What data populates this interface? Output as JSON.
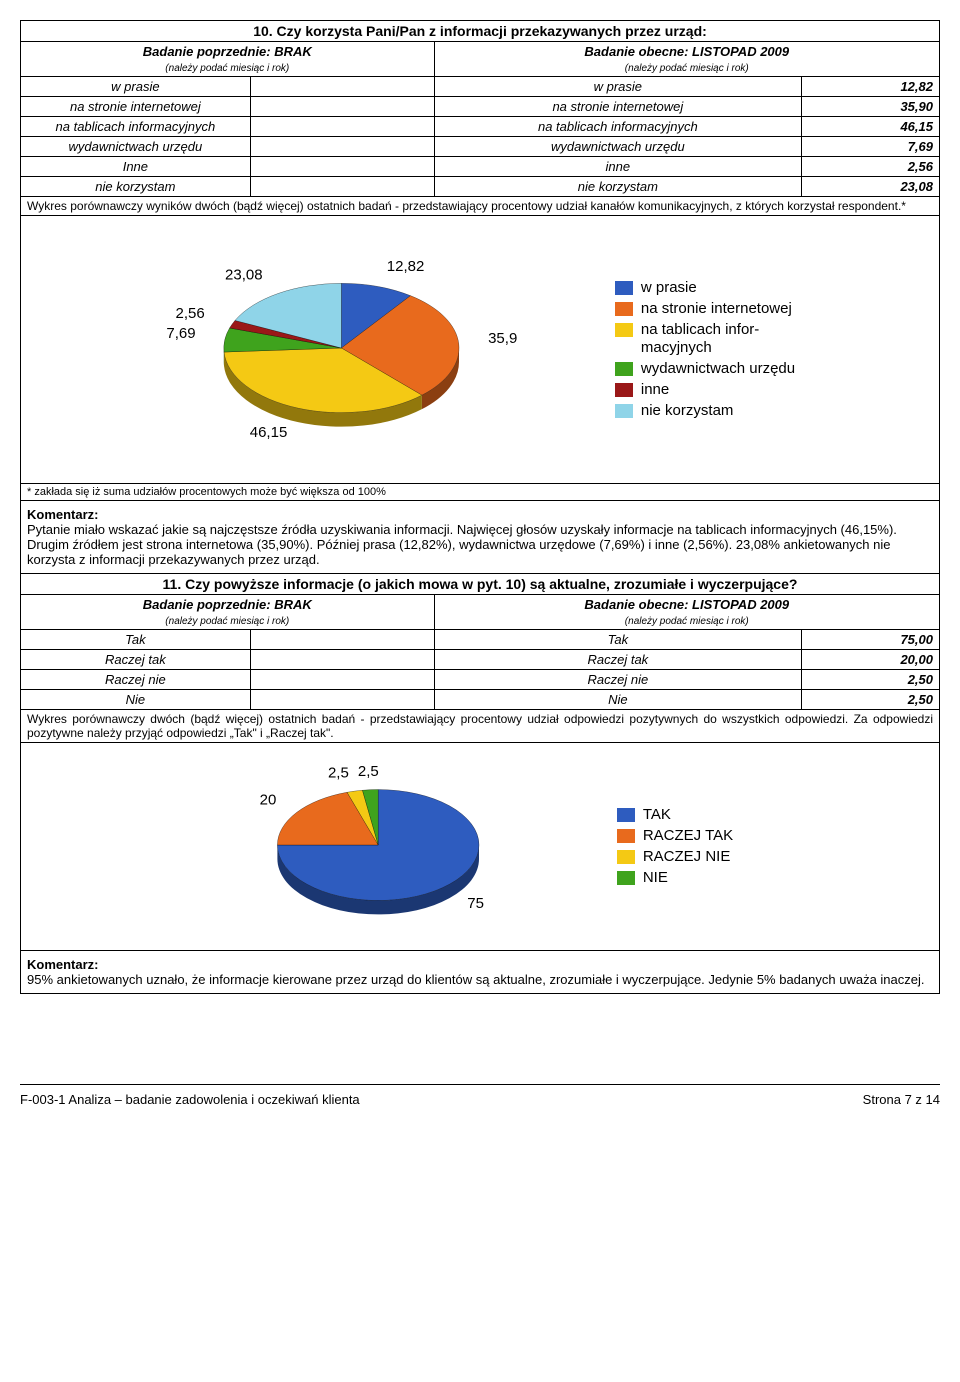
{
  "q10": {
    "title": "10. Czy korzysta Pani/Pan z informacji przekazywanych przez urząd:",
    "prev_label": "Badanie poprzednie: BRAK",
    "curr_label": "Badanie obecne: LISTOPAD 2009",
    "sub_note": "(należy podać miesiąc i rok)",
    "rows": [
      {
        "left": "w prasie",
        "right": "w prasie",
        "value": "12,82"
      },
      {
        "left": "na stronie internetowej",
        "right": "na stronie internetowej",
        "value": "35,90"
      },
      {
        "left": "na tablicach informacyjnych",
        "right": "na tablicach informacyjnych",
        "value": "46,15"
      },
      {
        "left": "wydawnictwach urzędu",
        "right": "wydawnictwach urzędu",
        "value": "7,69"
      },
      {
        "left": "Inne",
        "right": "inne",
        "value": "2,56"
      },
      {
        "left": "nie korzystam",
        "right": "nie korzystam",
        "value": "23,08"
      }
    ],
    "desc": "Wykres porównawczy wyników dwóch (bądź więcej) ostatnich badań - przedstawiający procentowy udział kanałów komunikacyjnych, z których korzystał respondent.*",
    "chart": {
      "type": "pie",
      "background": "#ffffff",
      "slices": [
        {
          "label": "w prasie",
          "value": 12.82,
          "display": "12,82",
          "color": "#2e5cbf"
        },
        {
          "label": "na stronie internetowej",
          "value": 35.9,
          "display": "35,9",
          "color": "#e86a1d"
        },
        {
          "label": "na tablicach infor-\nmacyjnych",
          "value": 46.15,
          "display": "46,15",
          "color": "#f4c914"
        },
        {
          "label": "wydawnictwach urzędu",
          "value": 7.69,
          "display": "7,69",
          "color": "#3fa31d"
        },
        {
          "label": "inne",
          "value": 2.56,
          "display": "2,56",
          "color": "#9a1818"
        },
        {
          "label": "nie korzystam",
          "value": 23.08,
          "display": "23,08",
          "color": "#8fd4e8"
        }
      ],
      "label_fontsize": 15,
      "legend_fontsize": 15
    },
    "footnote": "* zakłada się iż suma udziałów procentowych może być większa od 100%",
    "comment_label": "Komentarz:",
    "comment": "Pytanie miało wskazać jakie są najczęstsze   źródła uzyskiwania informacji. Najwięcej głosów uzyskały informacje na tablicach informacyjnych (46,15%). Drugim źródłem jest strona internetowa (35,90%). Później prasa (12,82%), wydawnictwa urzędowe (7,69%) i  inne (2,56%). 23,08% ankietowanych nie korzysta z informacji przekazywanych przez urząd."
  },
  "q11": {
    "title": "11. Czy powyższe informacje (o jakich mowa w pyt. 10) są aktualne, zrozumiałe i wyczerpujące?",
    "prev_label": "Badanie poprzednie: BRAK",
    "curr_label": "Badanie obecne: LISTOPAD 2009",
    "sub_note": "(należy podać miesiąc i rok)",
    "rows": [
      {
        "left": "Tak",
        "right": "Tak",
        "value": "75,00"
      },
      {
        "left": "Raczej tak",
        "right": "Raczej tak",
        "value": "20,00"
      },
      {
        "left": "Raczej nie",
        "right": "Raczej nie",
        "value": "2,50"
      },
      {
        "left": "Nie",
        "right": "Nie",
        "value": "2,50"
      }
    ],
    "desc": "Wykres porównawczy dwóch (bądź więcej) ostatnich badań - przedstawiający procentowy udział odpowiedzi pozytywnych do wszystkich odpowiedzi. Za odpowiedzi pozytywne należy przyjąć odpowiedzi „Tak\" i „Raczej tak\".",
    "chart": {
      "type": "pie",
      "background": "#ffffff",
      "slices": [
        {
          "label": "TAK",
          "value": 75,
          "display": "75",
          "color": "#2e5cbf"
        },
        {
          "label": "RACZEJ TAK",
          "value": 20,
          "display": "20",
          "color": "#e86a1d"
        },
        {
          "label": "RACZEJ NIE",
          "value": 2.5,
          "display": "2,5",
          "color": "#f4c914"
        },
        {
          "label": "NIE",
          "value": 2.5,
          "display": "2,5",
          "color": "#3fa31d"
        }
      ],
      "label_fontsize": 18,
      "legend_fontsize": 15
    },
    "comment_label": "Komentarz:",
    "comment": "95% ankietowanych uznało, że informacje kierowane przez urząd do klientów są aktualne, zrozumiałe i wyczerpujące. Jedynie 5% badanych uważa inaczej."
  },
  "footer": {
    "left": "F-003-1 Analiza – badanie zadowolenia i oczekiwań klienta",
    "right": "Strona 7 z 14"
  }
}
